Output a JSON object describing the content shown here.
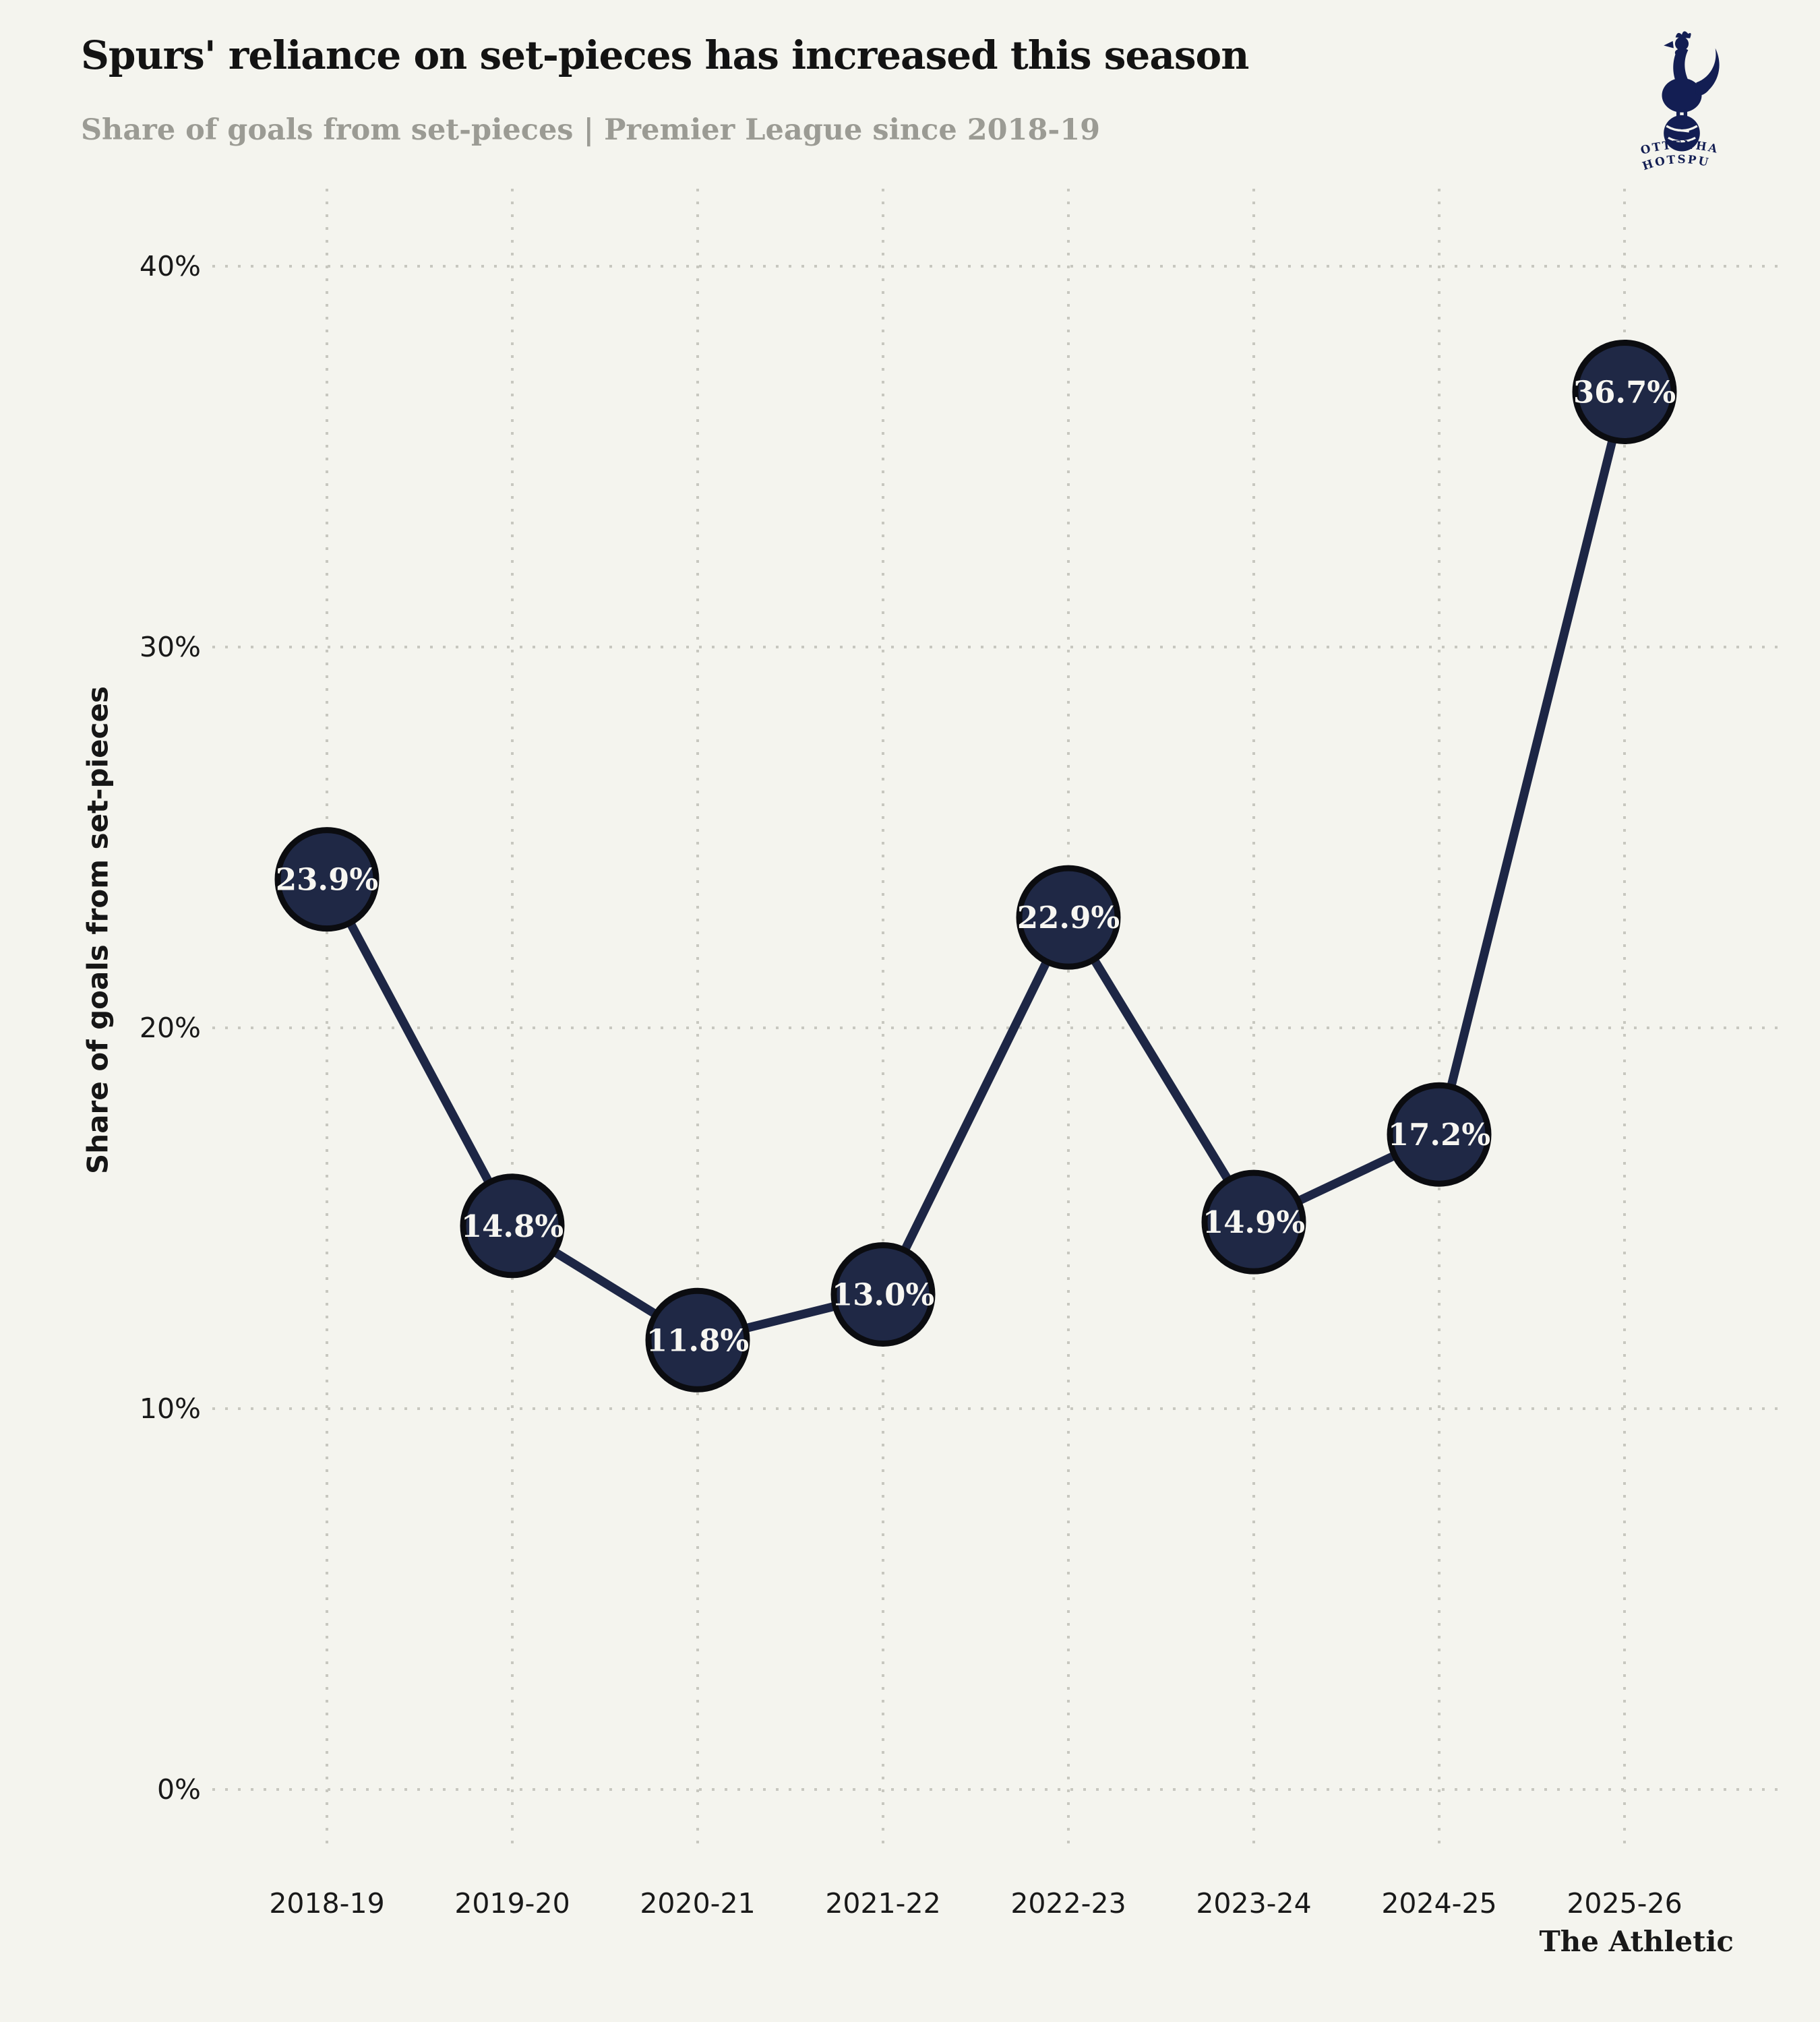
{
  "header": {
    "title": "Spurs' reliance on set-pieces has increased this season",
    "subtitle": "Share of goals from set-pieces | Premier League since 2018-19"
  },
  "logo": {
    "club": "Tottenham Hotspur",
    "line1": "TOTTENHAM",
    "line2": "HOTSPUR",
    "color": "#131e53"
  },
  "footer": {
    "brand": "The Athletic"
  },
  "chart_data": {
    "type": "line",
    "title": "Spurs' reliance on set-pieces has increased this season",
    "subtitle": "Share of goals from set-pieces | Premier League since 2018-19",
    "ylabel": "Share of goals from set-pieces",
    "xlabel": "",
    "categories": [
      "2018-19",
      "2019-20",
      "2020-21",
      "2021-22",
      "2022-23",
      "2023-24",
      "2024-25",
      "2025-26"
    ],
    "values": [
      23.9,
      14.8,
      11.8,
      13.0,
      22.9,
      14.9,
      17.2,
      36.7
    ],
    "point_labels": [
      "23.9%",
      "14.8%",
      "11.8%",
      "13.0%",
      "22.9%",
      "14.9%",
      "17.2%",
      "36.7%"
    ],
    "yticks": [
      0,
      10,
      20,
      30,
      40
    ],
    "ytick_labels": [
      "0%",
      "10%",
      "20%",
      "30%",
      "40%"
    ],
    "ylim": [
      0,
      42
    ],
    "grid": "dotted",
    "legend": "none",
    "colors": {
      "background": "#f4f4ee",
      "grid": "#c7c7bf",
      "line": "#1d2645",
      "marker_fill": "#1f2845",
      "marker_stroke": "#0b0c10",
      "marker_text": "#f7f6f1",
      "axis_text": "#191919",
      "title": "#131313",
      "subtitle": "#9b9b94"
    }
  }
}
